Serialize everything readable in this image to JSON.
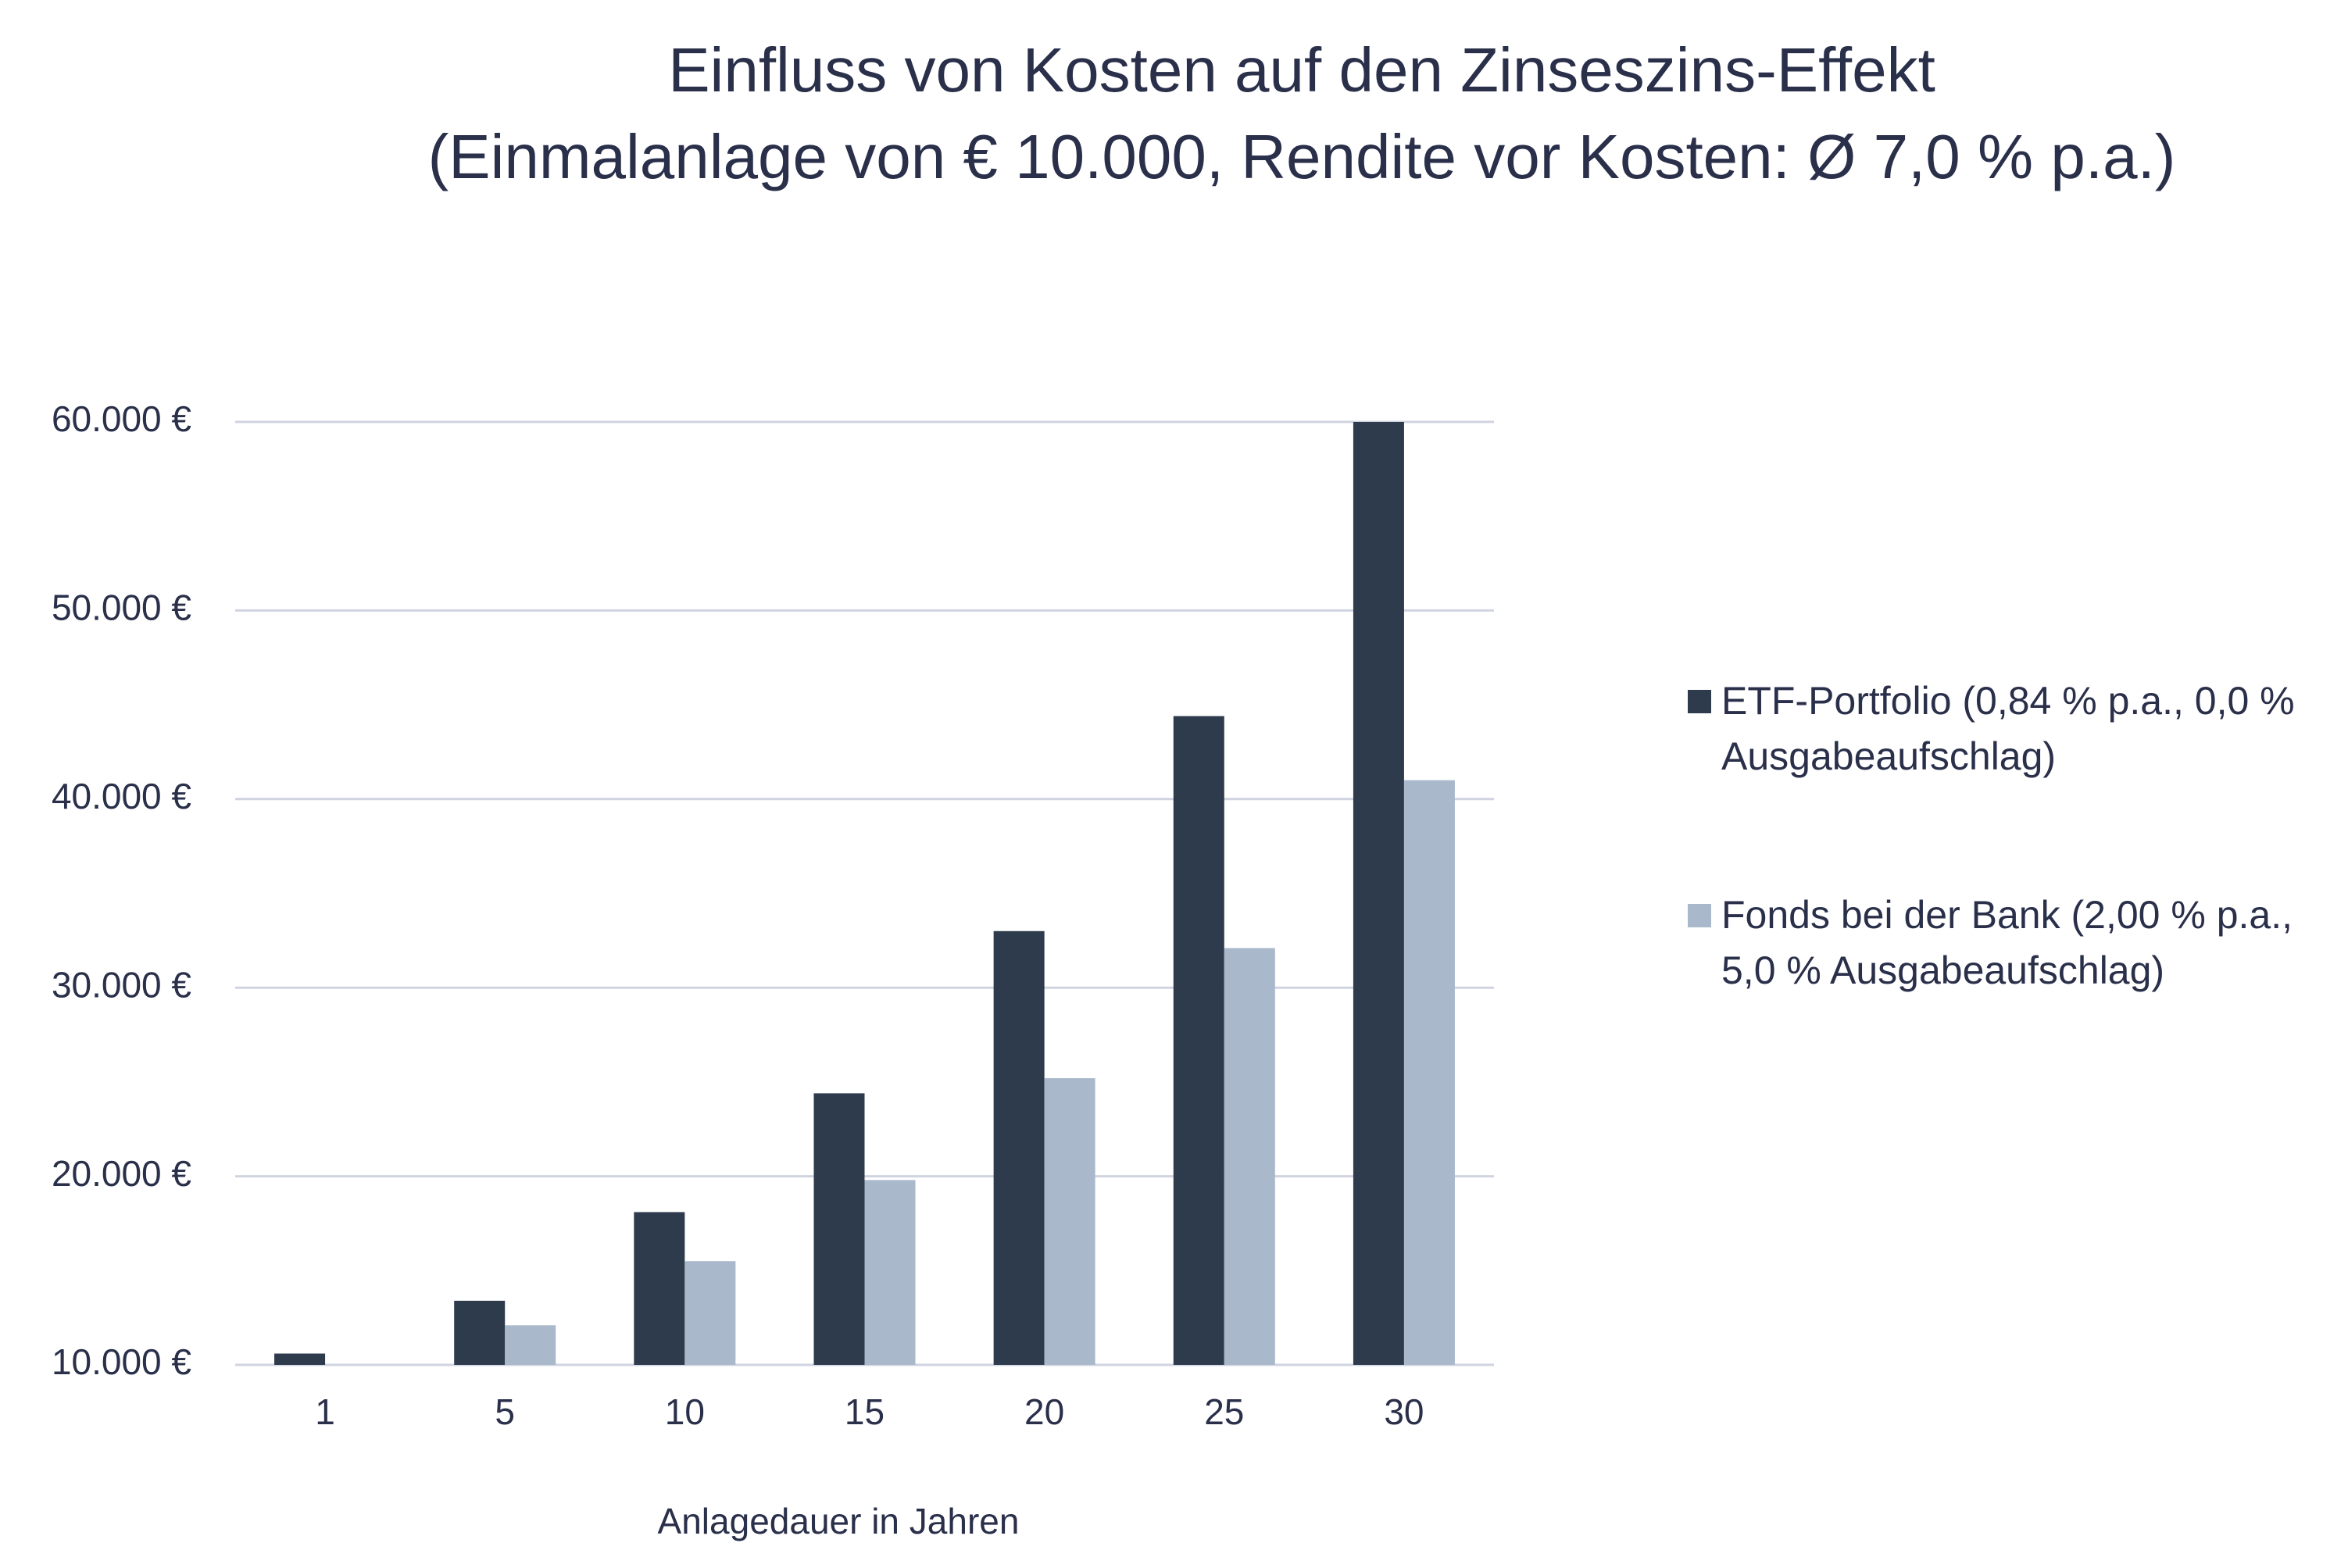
{
  "chart_data": {
    "type": "bar",
    "title": "Einfluss von Kosten auf den Zinseszins-Effekt",
    "subtitle": "(Einmalanlage von € 10.000, Rendite vor Kosten: Ø 7,0 % p.a.)",
    "x_label": "Anlagedauer in Jahren",
    "categories": [
      "1",
      "5",
      "10",
      "15",
      "20",
      "25",
      "30"
    ],
    "series": [
      {
        "name": "ETF-Portfolio (0,84 % p.a., 0,0 % Ausgabeaufschlag)",
        "color": "#2d3b4c",
        "values": [
          10600,
          13400,
          18100,
          24400,
          33000,
          44400,
          60000
        ]
      },
      {
        "name": "Fonds bei der Bank (2,00 % p.a., 5,0 % Ausgabeaufschlag)",
        "color": "#a9b8cb",
        "values": [
          10000,
          12100,
          15500,
          19800,
          25200,
          32100,
          41000
        ]
      }
    ],
    "ylim": [
      10000,
      60000
    ],
    "yticks": [
      {
        "value": 10000,
        "label": "10.000 €"
      },
      {
        "value": 20000,
        "label": "20.000 €"
      },
      {
        "value": 30000,
        "label": "30.000 €"
      },
      {
        "value": 40000,
        "label": "40.000 €"
      },
      {
        "value": 50000,
        "label": "50.000 €"
      },
      {
        "value": 60000,
        "label": "60.000 €"
      }
    ],
    "grid": true,
    "legend": "right"
  }
}
